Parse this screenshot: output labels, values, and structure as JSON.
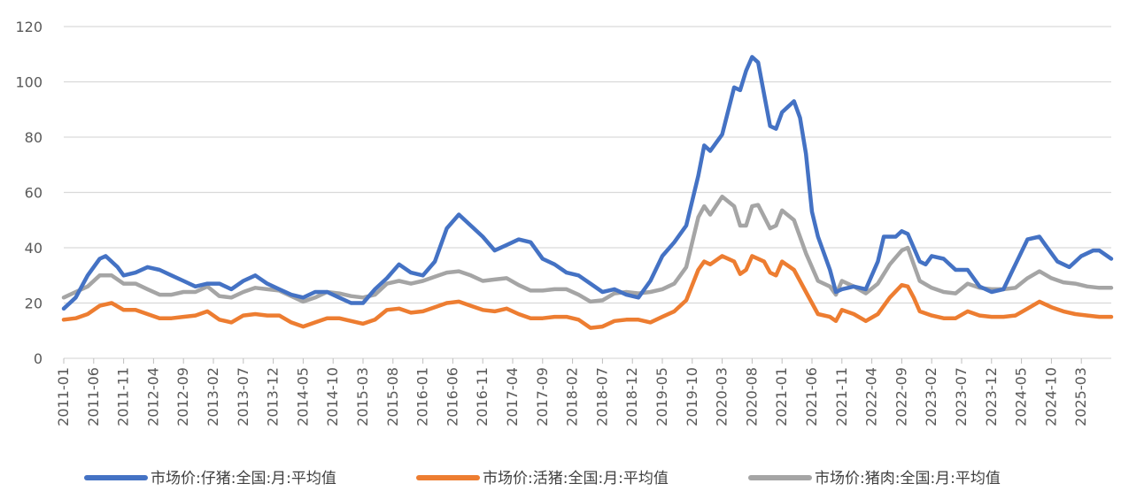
{
  "chart_data": {
    "type": "line",
    "title": "",
    "xlabel": "",
    "ylabel": "",
    "ylim": [
      0,
      120
    ],
    "yticks": [
      0,
      20,
      40,
      60,
      80,
      100,
      120
    ],
    "grid": true,
    "legend_position": "bottom",
    "x_tick_labels": [
      "2011-01",
      "2011-06",
      "2011-11",
      "2012-04",
      "2012-09",
      "2013-02",
      "2013-07",
      "2013-12",
      "2014-05",
      "2014-10",
      "2015-03",
      "2015-08",
      "2016-01",
      "2016-06",
      "2016-11",
      "2017-04",
      "2017-09",
      "2018-02",
      "2018-07",
      "2018-12",
      "2019-05",
      "2019-10",
      "2020-03",
      "2020-08",
      "2021-01",
      "2021-06",
      "2021-11",
      "2022-04",
      "2022-09",
      "2023-02",
      "2023-07",
      "2023-12",
      "2024-05",
      "2024-10",
      "2025-03"
    ],
    "x_start": "2011-01",
    "x_end": "2025-08",
    "series": [
      {
        "name": "市场价:仔猪:全国:月:平均值",
        "color": "#4472c4",
        "points": [
          [
            "2011-01",
            18
          ],
          [
            "2011-03",
            22
          ],
          [
            "2011-05",
            30
          ],
          [
            "2011-07",
            36
          ],
          [
            "2011-08",
            37
          ],
          [
            "2011-10",
            33
          ],
          [
            "2011-11",
            30
          ],
          [
            "2012-01",
            31
          ],
          [
            "2012-03",
            33
          ],
          [
            "2012-05",
            32
          ],
          [
            "2012-07",
            30
          ],
          [
            "2012-09",
            28
          ],
          [
            "2012-11",
            26
          ],
          [
            "2013-01",
            27
          ],
          [
            "2013-03",
            27
          ],
          [
            "2013-05",
            25
          ],
          [
            "2013-07",
            28
          ],
          [
            "2013-09",
            30
          ],
          [
            "2013-11",
            27
          ],
          [
            "2014-01",
            25
          ],
          [
            "2014-03",
            23
          ],
          [
            "2014-05",
            22
          ],
          [
            "2014-07",
            24
          ],
          [
            "2014-09",
            24
          ],
          [
            "2014-11",
            22
          ],
          [
            "2015-01",
            20
          ],
          [
            "2015-03",
            20
          ],
          [
            "2015-05",
            25
          ],
          [
            "2015-07",
            29
          ],
          [
            "2015-09",
            34
          ],
          [
            "2015-11",
            31
          ],
          [
            "2016-01",
            30
          ],
          [
            "2016-03",
            35
          ],
          [
            "2016-05",
            47
          ],
          [
            "2016-07",
            52
          ],
          [
            "2016-09",
            48
          ],
          [
            "2016-11",
            44
          ],
          [
            "2017-01",
            39
          ],
          [
            "2017-03",
            41
          ],
          [
            "2017-05",
            43
          ],
          [
            "2017-07",
            42
          ],
          [
            "2017-09",
            36
          ],
          [
            "2017-11",
            34
          ],
          [
            "2018-01",
            31
          ],
          [
            "2018-03",
            30
          ],
          [
            "2018-05",
            27
          ],
          [
            "2018-07",
            24
          ],
          [
            "2018-09",
            25
          ],
          [
            "2018-11",
            23
          ],
          [
            "2019-01",
            22
          ],
          [
            "2019-03",
            28
          ],
          [
            "2019-05",
            37
          ],
          [
            "2019-07",
            42
          ],
          [
            "2019-09",
            48
          ],
          [
            "2019-11",
            66
          ],
          [
            "2019-12",
            77
          ],
          [
            "2020-01",
            75
          ],
          [
            "2020-03",
            81
          ],
          [
            "2020-05",
            98
          ],
          [
            "2020-06",
            97
          ],
          [
            "2020-07",
            104
          ],
          [
            "2020-08",
            109
          ],
          [
            "2020-09",
            107
          ],
          [
            "2020-11",
            84
          ],
          [
            "2020-12",
            83
          ],
          [
            "2021-01",
            89
          ],
          [
            "2021-03",
            93
          ],
          [
            "2021-04",
            87
          ],
          [
            "2021-05",
            74
          ],
          [
            "2021-06",
            53
          ],
          [
            "2021-07",
            44
          ],
          [
            "2021-09",
            32
          ],
          [
            "2021-10",
            24
          ],
          [
            "2021-11",
            25
          ],
          [
            "2022-01",
            26
          ],
          [
            "2022-03",
            25
          ],
          [
            "2022-05",
            35
          ],
          [
            "2022-06",
            44
          ],
          [
            "2022-08",
            44
          ],
          [
            "2022-09",
            46
          ],
          [
            "2022-10",
            45
          ],
          [
            "2022-12",
            35
          ],
          [
            "2023-01",
            34
          ],
          [
            "2023-02",
            37
          ],
          [
            "2023-04",
            36
          ],
          [
            "2023-06",
            32
          ],
          [
            "2023-08",
            32
          ],
          [
            "2023-10",
            26
          ],
          [
            "2023-12",
            24
          ],
          [
            "2024-02",
            25
          ],
          [
            "2024-04",
            34
          ],
          [
            "2024-06",
            43
          ],
          [
            "2024-08",
            44
          ],
          [
            "2024-09",
            41
          ],
          [
            "2024-11",
            35
          ],
          [
            "2025-01",
            33
          ],
          [
            "2025-03",
            37
          ],
          [
            "2025-05",
            39
          ],
          [
            "2025-06",
            39
          ],
          [
            "2025-08",
            36
          ]
        ]
      },
      {
        "name": "市场价:活猪:全国:月:平均值",
        "color": "#ed7d31",
        "points": [
          [
            "2011-01",
            14
          ],
          [
            "2011-03",
            14.5
          ],
          [
            "2011-05",
            16
          ],
          [
            "2011-07",
            19
          ],
          [
            "2011-09",
            20
          ],
          [
            "2011-11",
            17.5
          ],
          [
            "2012-01",
            17.5
          ],
          [
            "2012-03",
            16
          ],
          [
            "2012-05",
            14.5
          ],
          [
            "2012-07",
            14.5
          ],
          [
            "2012-09",
            15
          ],
          [
            "2012-11",
            15.5
          ],
          [
            "2013-01",
            17
          ],
          [
            "2013-03",
            14
          ],
          [
            "2013-05",
            13
          ],
          [
            "2013-07",
            15.5
          ],
          [
            "2013-09",
            16
          ],
          [
            "2013-11",
            15.5
          ],
          [
            "2014-01",
            15.5
          ],
          [
            "2014-03",
            13
          ],
          [
            "2014-05",
            11.5
          ],
          [
            "2014-07",
            13
          ],
          [
            "2014-09",
            14.5
          ],
          [
            "2014-11",
            14.5
          ],
          [
            "2015-01",
            13.5
          ],
          [
            "2015-03",
            12.5
          ],
          [
            "2015-05",
            14
          ],
          [
            "2015-07",
            17.5
          ],
          [
            "2015-09",
            18
          ],
          [
            "2015-11",
            16.5
          ],
          [
            "2016-01",
            17
          ],
          [
            "2016-03",
            18.5
          ],
          [
            "2016-05",
            20
          ],
          [
            "2016-07",
            20.5
          ],
          [
            "2016-09",
            19
          ],
          [
            "2016-11",
            17.5
          ],
          [
            "2017-01",
            17
          ],
          [
            "2017-03",
            18
          ],
          [
            "2017-05",
            16
          ],
          [
            "2017-07",
            14.5
          ],
          [
            "2017-09",
            14.5
          ],
          [
            "2017-11",
            15
          ],
          [
            "2018-01",
            15
          ],
          [
            "2018-03",
            14
          ],
          [
            "2018-05",
            11
          ],
          [
            "2018-07",
            11.5
          ],
          [
            "2018-09",
            13.5
          ],
          [
            "2018-11",
            14
          ],
          [
            "2019-01",
            14
          ],
          [
            "2019-03",
            13
          ],
          [
            "2019-05",
            15
          ],
          [
            "2019-07",
            17
          ],
          [
            "2019-09",
            21
          ],
          [
            "2019-11",
            32
          ],
          [
            "2019-12",
            35
          ],
          [
            "2020-01",
            34
          ],
          [
            "2020-03",
            37
          ],
          [
            "2020-05",
            35
          ],
          [
            "2020-06",
            30.5
          ],
          [
            "2020-07",
            32
          ],
          [
            "2020-08",
            37
          ],
          [
            "2020-10",
            35
          ],
          [
            "2020-11",
            31
          ],
          [
            "2020-12",
            30
          ],
          [
            "2021-01",
            35
          ],
          [
            "2021-03",
            32
          ],
          [
            "2021-05",
            24
          ],
          [
            "2021-07",
            16
          ],
          [
            "2021-09",
            15
          ],
          [
            "2021-10",
            13.5
          ],
          [
            "2021-11",
            17.5
          ],
          [
            "2022-01",
            16
          ],
          [
            "2022-03",
            13.5
          ],
          [
            "2022-05",
            16
          ],
          [
            "2022-07",
            22
          ],
          [
            "2022-09",
            26.5
          ],
          [
            "2022-10",
            26
          ],
          [
            "2022-11",
            22
          ],
          [
            "2022-12",
            17
          ],
          [
            "2023-02",
            15.5
          ],
          [
            "2023-04",
            14.5
          ],
          [
            "2023-06",
            14.5
          ],
          [
            "2023-08",
            17
          ],
          [
            "2023-10",
            15.5
          ],
          [
            "2023-12",
            15
          ],
          [
            "2024-02",
            15
          ],
          [
            "2024-04",
            15.5
          ],
          [
            "2024-06",
            18
          ],
          [
            "2024-08",
            20.5
          ],
          [
            "2024-10",
            18.5
          ],
          [
            "2024-12",
            17
          ],
          [
            "2025-02",
            16
          ],
          [
            "2025-04",
            15.5
          ],
          [
            "2025-06",
            15
          ],
          [
            "2025-08",
            15
          ]
        ]
      },
      {
        "name": "市场价:猪肉:全国:月:平均值",
        "color": "#a5a5a5",
        "points": [
          [
            "2011-01",
            22
          ],
          [
            "2011-03",
            24
          ],
          [
            "2011-05",
            26
          ],
          [
            "2011-07",
            30
          ],
          [
            "2011-09",
            30
          ],
          [
            "2011-11",
            27
          ],
          [
            "2012-01",
            27
          ],
          [
            "2012-03",
            25
          ],
          [
            "2012-05",
            23
          ],
          [
            "2012-07",
            23
          ],
          [
            "2012-09",
            24
          ],
          [
            "2012-11",
            24
          ],
          [
            "2013-01",
            26
          ],
          [
            "2013-03",
            22.5
          ],
          [
            "2013-05",
            22
          ],
          [
            "2013-07",
            24
          ],
          [
            "2013-09",
            25.5
          ],
          [
            "2013-11",
            25
          ],
          [
            "2014-01",
            24.5
          ],
          [
            "2014-03",
            22.5
          ],
          [
            "2014-05",
            20.5
          ],
          [
            "2014-07",
            22
          ],
          [
            "2014-09",
            24
          ],
          [
            "2014-11",
            23.5
          ],
          [
            "2015-01",
            22.5
          ],
          [
            "2015-03",
            22
          ],
          [
            "2015-05",
            23
          ],
          [
            "2015-07",
            27
          ],
          [
            "2015-09",
            28
          ],
          [
            "2015-11",
            27
          ],
          [
            "2016-01",
            28
          ],
          [
            "2016-03",
            29.5
          ],
          [
            "2016-05",
            31
          ],
          [
            "2016-07",
            31.5
          ],
          [
            "2016-09",
            30
          ],
          [
            "2016-11",
            28
          ],
          [
            "2017-01",
            28.5
          ],
          [
            "2017-03",
            29
          ],
          [
            "2017-05",
            26.5
          ],
          [
            "2017-07",
            24.5
          ],
          [
            "2017-09",
            24.5
          ],
          [
            "2017-11",
            25
          ],
          [
            "2018-01",
            25
          ],
          [
            "2018-03",
            23
          ],
          [
            "2018-05",
            20.5
          ],
          [
            "2018-07",
            21
          ],
          [
            "2018-09",
            23.5
          ],
          [
            "2018-11",
            24
          ],
          [
            "2019-01",
            23.5
          ],
          [
            "2019-03",
            24
          ],
          [
            "2019-05",
            25
          ],
          [
            "2019-07",
            27
          ],
          [
            "2019-09",
            33
          ],
          [
            "2019-11",
            51
          ],
          [
            "2019-12",
            55
          ],
          [
            "2020-01",
            52
          ],
          [
            "2020-03",
            58.5
          ],
          [
            "2020-05",
            55
          ],
          [
            "2020-06",
            48
          ],
          [
            "2020-07",
            48
          ],
          [
            "2020-08",
            55
          ],
          [
            "2020-09",
            55.5
          ],
          [
            "2020-11",
            47
          ],
          [
            "2020-12",
            48
          ],
          [
            "2021-01",
            53.5
          ],
          [
            "2021-03",
            50
          ],
          [
            "2021-05",
            38
          ],
          [
            "2021-07",
            28
          ],
          [
            "2021-09",
            26
          ],
          [
            "2021-10",
            23
          ],
          [
            "2021-11",
            28
          ],
          [
            "2022-01",
            26
          ],
          [
            "2022-03",
            23.5
          ],
          [
            "2022-05",
            27
          ],
          [
            "2022-07",
            34
          ],
          [
            "2022-09",
            39
          ],
          [
            "2022-10",
            40
          ],
          [
            "2022-11",
            34
          ],
          [
            "2022-12",
            28
          ],
          [
            "2023-02",
            25.5
          ],
          [
            "2023-04",
            24
          ],
          [
            "2023-06",
            23.5
          ],
          [
            "2023-08",
            27
          ],
          [
            "2023-10",
            25.5
          ],
          [
            "2023-12",
            25
          ],
          [
            "2024-02",
            25
          ],
          [
            "2024-04",
            25.5
          ],
          [
            "2024-06",
            29
          ],
          [
            "2024-08",
            31.5
          ],
          [
            "2024-10",
            29
          ],
          [
            "2024-12",
            27.5
          ],
          [
            "2025-02",
            27
          ],
          [
            "2025-04",
            26
          ],
          [
            "2025-06",
            25.5
          ],
          [
            "2025-08",
            25.5
          ]
        ]
      }
    ]
  }
}
